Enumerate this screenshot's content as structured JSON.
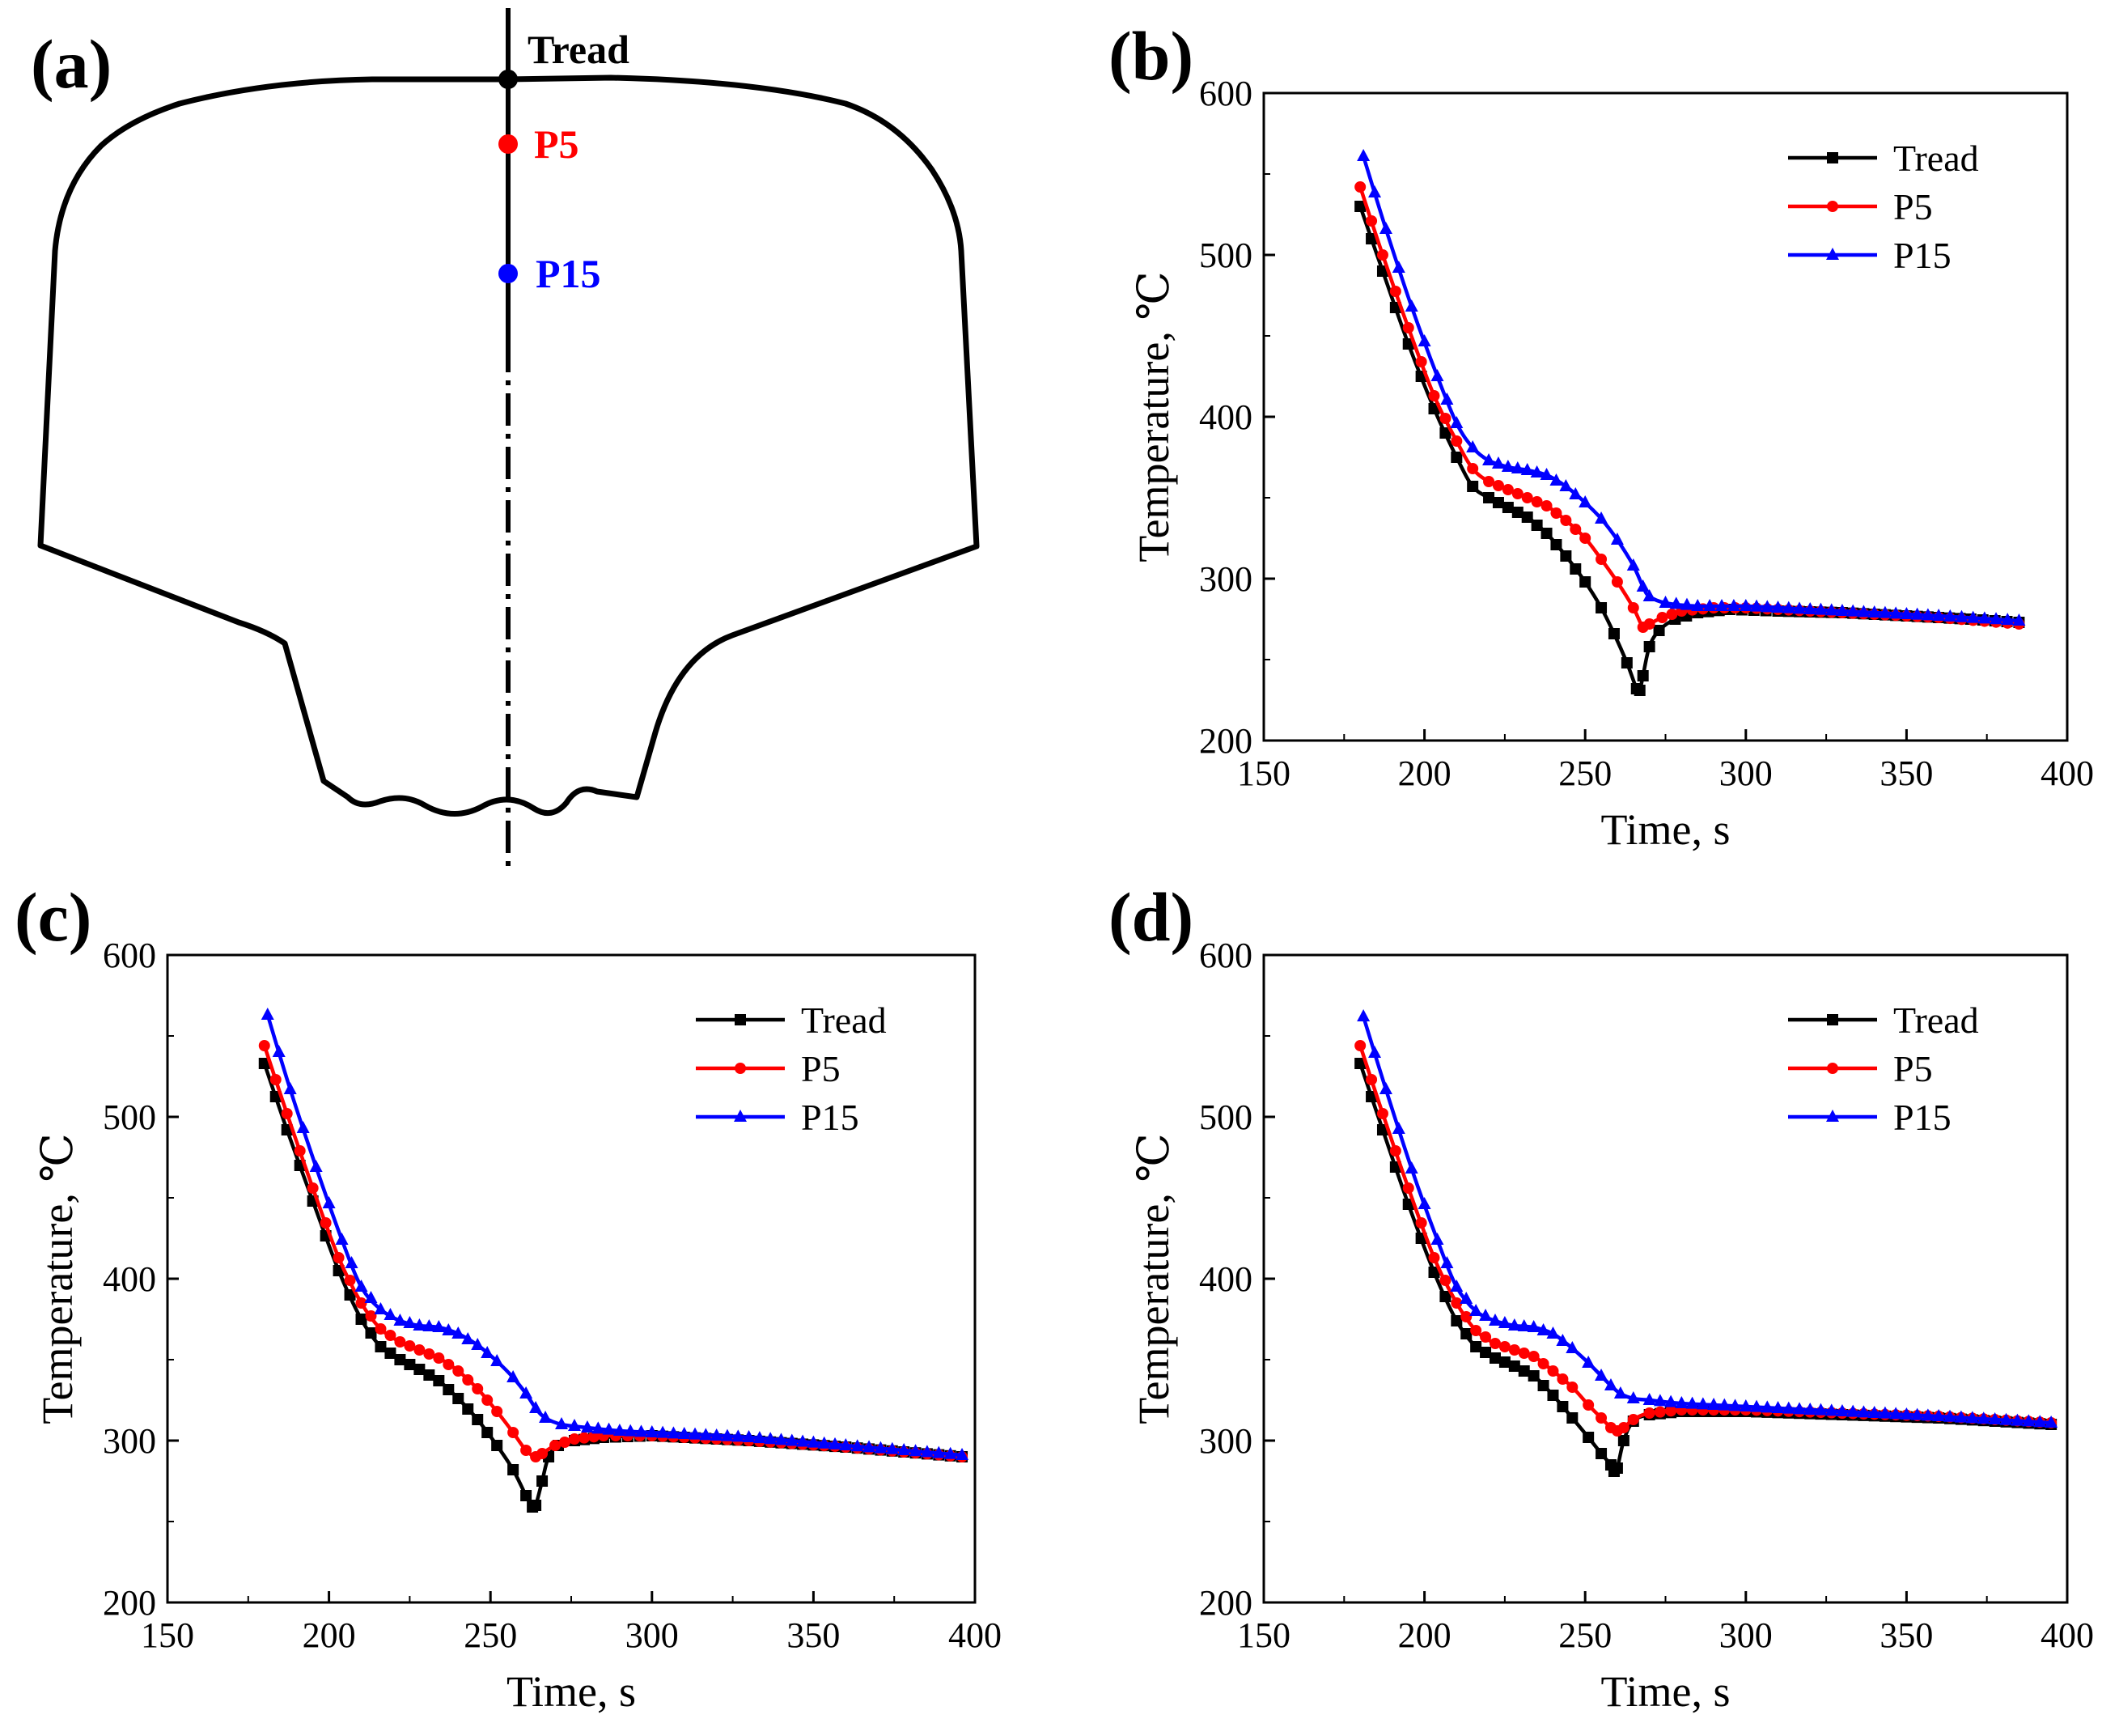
{
  "figure": {
    "panel_a": {
      "label": "(a)",
      "points": [
        {
          "name": "Tread",
          "color": "#000000"
        },
        {
          "name": "P5",
          "color": "#ff0000"
        },
        {
          "name": "P15",
          "color": "#0000ff"
        }
      ]
    }
  },
  "chart_data": [
    {
      "panel": "(b)",
      "type": "line",
      "xlabel": "Time, s",
      "ylabel": "Temperature, ℃",
      "xlim": [
        150,
        400
      ],
      "ylim": [
        200,
        600
      ],
      "xticks": [
        150,
        200,
        250,
        300,
        350,
        400
      ],
      "yticks": [
        200,
        300,
        400,
        500,
        600
      ],
      "legend_position": "top-right",
      "series": [
        {
          "name": "Tread",
          "color": "#000000",
          "marker": "square",
          "x": [
            180,
            187,
            195,
            203,
            210,
            215,
            220,
            226,
            232,
            238,
            244,
            250,
            255,
            259,
            263,
            266,
            267,
            268,
            270,
            273,
            278,
            285,
            295,
            310,
            330,
            350,
            370,
            385
          ],
          "y": [
            530,
            490,
            445,
            405,
            375,
            357,
            350,
            344,
            338,
            328,
            314,
            298,
            282,
            266,
            248,
            232,
            231,
            240,
            258,
            268,
            275,
            279,
            281,
            280,
            279,
            277,
            275,
            273
          ]
        },
        {
          "name": "P5",
          "color": "#ff0000",
          "marker": "circle",
          "x": [
            180,
            187,
            195,
            203,
            210,
            215,
            220,
            226,
            232,
            238,
            244,
            250,
            255,
            260,
            265,
            268,
            270,
            274,
            280,
            290,
            300,
            320,
            340,
            360,
            385
          ],
          "y": [
            542,
            500,
            455,
            413,
            385,
            368,
            360,
            355,
            350,
            345,
            336,
            325,
            312,
            298,
            282,
            270,
            272,
            276,
            280,
            282,
            282,
            280,
            278,
            276,
            272
          ]
        },
        {
          "name": "P15",
          "color": "#0000ff",
          "marker": "triangle",
          "x": [
            181,
            188,
            196,
            204,
            210,
            215,
            220,
            226,
            232,
            238,
            244,
            250,
            255,
            260,
            265,
            268,
            270,
            275,
            285,
            300,
            320,
            340,
            360,
            385
          ],
          "y": [
            561,
            516,
            468,
            425,
            396,
            381,
            373,
            369,
            367,
            364,
            357,
            347,
            337,
            324,
            308,
            295,
            289,
            285,
            283,
            283,
            281,
            279,
            277,
            274
          ]
        }
      ]
    },
    {
      "panel": "(c)",
      "type": "line",
      "xlabel": "Time, s",
      "ylabel": "Temperature, ℃",
      "xlim": [
        150,
        400
      ],
      "ylim": [
        200,
        600
      ],
      "xticks": [
        150,
        200,
        250,
        300,
        350,
        400
      ],
      "yticks": [
        200,
        300,
        400,
        500,
        600
      ],
      "legend_position": "top-right",
      "series": [
        {
          "name": "Tread",
          "color": "#000000",
          "marker": "square",
          "x": [
            180,
            187,
            195,
            203,
            210,
            216,
            222,
            228,
            234,
            240,
            246,
            252,
            257,
            261,
            263,
            264,
            266,
            268,
            271,
            276,
            285,
            300,
            330,
            360,
            396
          ],
          "y": [
            533,
            492,
            448,
            405,
            375,
            358,
            350,
            344,
            337,
            326,
            313,
            297,
            282,
            266,
            259,
            260,
            275,
            290,
            297,
            300,
            302,
            303,
            300,
            296,
            290
          ]
        },
        {
          "name": "P5",
          "color": "#ff0000",
          "marker": "circle",
          "x": [
            180,
            187,
            195,
            203,
            210,
            216,
            222,
            228,
            234,
            240,
            246,
            252,
            257,
            261,
            264,
            266,
            270,
            276,
            285,
            300,
            330,
            360,
            396
          ],
          "y": [
            544,
            502,
            456,
            413,
            385,
            369,
            361,
            356,
            351,
            343,
            332,
            318,
            305,
            294,
            290,
            292,
            297,
            301,
            303,
            303,
            300,
            296,
            290
          ]
        },
        {
          "name": "P15",
          "color": "#0000ff",
          "marker": "triangle",
          "x": [
            181,
            188,
            196,
            204,
            210,
            216,
            222,
            228,
            234,
            240,
            246,
            252,
            257,
            261,
            264,
            267,
            272,
            280,
            290,
            300,
            330,
            360,
            396
          ],
          "y": [
            563,
            517,
            469,
            424,
            395,
            381,
            374,
            371,
            370,
            366,
            359,
            349,
            339,
            329,
            320,
            314,
            310,
            308,
            306,
            305,
            302,
            297,
            291
          ]
        }
      ]
    },
    {
      "panel": "(d)",
      "type": "line",
      "xlabel": "Time, s",
      "ylabel": "Temperature, ℃",
      "xlim": [
        150,
        400
      ],
      "ylim": [
        200,
        600
      ],
      "xticks": [
        150,
        200,
        250,
        300,
        350,
        400
      ],
      "yticks": [
        200,
        300,
        400,
        500,
        600
      ],
      "legend_position": "top-right",
      "series": [
        {
          "name": "Tread",
          "color": "#000000",
          "marker": "square",
          "x": [
            180,
            187,
            195,
            203,
            210,
            216,
            222,
            228,
            234,
            240,
            246,
            251,
            255,
            258,
            259,
            260,
            262,
            265,
            270,
            280,
            300,
            330,
            360,
            395
          ],
          "y": [
            533,
            492,
            446,
            404,
            374,
            358,
            351,
            346,
            340,
            328,
            314,
            302,
            292,
            285,
            281,
            283,
            300,
            312,
            316,
            318,
            318,
            316,
            314,
            310
          ]
        },
        {
          "name": "P5",
          "color": "#ff0000",
          "marker": "circle",
          "x": [
            180,
            187,
            195,
            203,
            210,
            216,
            222,
            228,
            234,
            240,
            246,
            251,
            255,
            258,
            260,
            262,
            265,
            270,
            280,
            300,
            330,
            360,
            395
          ],
          "y": [
            544,
            502,
            456,
            413,
            385,
            368,
            360,
            356,
            352,
            343,
            333,
            322,
            314,
            308,
            306,
            308,
            313,
            317,
            319,
            319,
            317,
            315,
            311
          ]
        },
        {
          "name": "P15",
          "color": "#0000ff",
          "marker": "triangle",
          "x": [
            181,
            188,
            196,
            204,
            210,
            216,
            222,
            228,
            234,
            240,
            246,
            251,
            255,
            258,
            261,
            265,
            270,
            280,
            300,
            330,
            360,
            395
          ],
          "y": [
            562,
            517,
            468,
            424,
            395,
            380,
            374,
            371,
            370,
            366,
            357,
            348,
            340,
            334,
            329,
            326,
            325,
            323,
            321,
            318,
            315,
            311
          ]
        }
      ]
    }
  ]
}
